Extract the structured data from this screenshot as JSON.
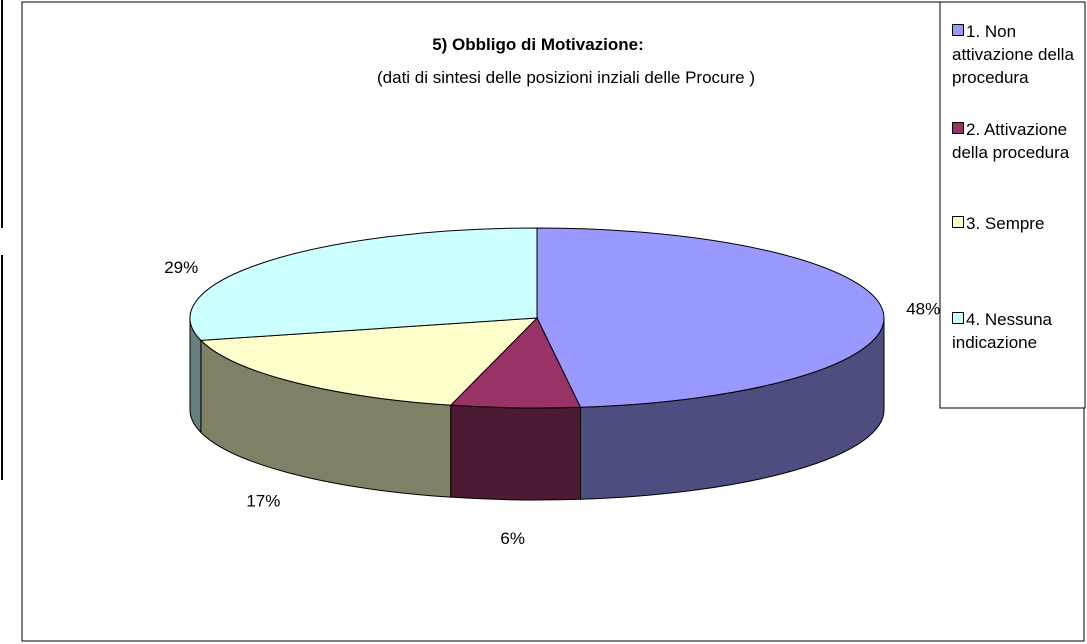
{
  "chart_data": {
    "type": "pie",
    "title": "5) Obbligo di Motivazione:",
    "subtitle": "(dati di sintesi delle posizioni inziali delle Procure )",
    "categories": [
      "1. Non attivazione della procedura",
      "2. Attivazione della procedura",
      "3. Sempre",
      "4. Nessuna indicazione"
    ],
    "values": [
      48,
      6,
      17,
      29
    ],
    "value_labels": [
      "48%",
      "6%",
      "17%",
      "29%"
    ],
    "colors": [
      "#9999ff",
      "#993366",
      "#ffffcc",
      "#ccffff"
    ],
    "legend": "right"
  }
}
